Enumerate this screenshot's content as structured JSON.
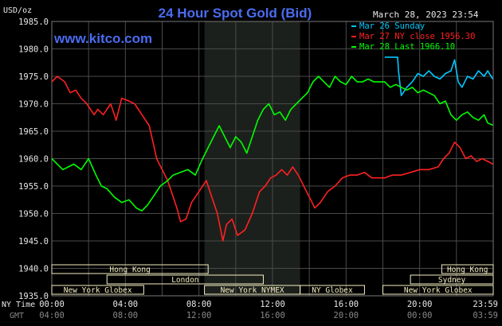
{
  "header": {
    "title": "24 Hour Spot Gold (Bid)",
    "unit": "USD/oz",
    "timestamp": "March 28, 2023 23:54",
    "watermark": "www.kitco.com"
  },
  "legend": [
    {
      "label": "Mar 26 Sunday",
      "color": "#00c8ff"
    },
    {
      "label": "Mar 27 NY close 1956.30",
      "color": "#ff2020"
    },
    {
      "label": "Mar 28 Last 1966.10",
      "color": "#00ff00"
    }
  ],
  "colors": {
    "background": "#000000",
    "grid": "#4a4a4a",
    "title": "#4a6cf0",
    "watermark": "#4a6cf0",
    "axis_text": "#e8e8e8",
    "session_fill": "#f3eec0",
    "session_text": "#333333",
    "highlight_band": "#1c201c"
  },
  "axis_labels": {
    "ny_time": "NY Time",
    "gmt": "GMT"
  },
  "sessions": [
    {
      "label": "Hong Kong",
      "start": 0,
      "end": 8.5,
      "row": 0
    },
    {
      "label": "Hong Kong",
      "start": 21.2,
      "end": 24,
      "row": 0
    },
    {
      "label": "London",
      "start": 3,
      "end": 11.5,
      "row": 1
    },
    {
      "label": "Sydney",
      "start": 19.5,
      "end": 24,
      "row": 1
    },
    {
      "label": "New York Globex",
      "start": 0,
      "end": 5,
      "row": 2
    },
    {
      "label": "New York NYMEX",
      "start": 8.3,
      "end": 13.5,
      "row": 2
    },
    {
      "label": "NY Globex",
      "start": 13.5,
      "end": 17,
      "row": 2
    },
    {
      "label": "New York Globex",
      "start": 18,
      "end": 24,
      "row": 2
    }
  ],
  "chart_data": {
    "type": "line",
    "ylim": [
      1935,
      1985
    ],
    "y_ticks": [
      1935,
      1940,
      1945,
      1950,
      1955,
      1960,
      1965,
      1970,
      1975,
      1980,
      1985
    ],
    "y_tick_labels": [
      "1935.0",
      "1940.0",
      "1945.0",
      "1950.0",
      "1955.0",
      "1960.0",
      "1965.0",
      "1970.0",
      "1975.0",
      "1980.0",
      "1985.0"
    ],
    "xlim": [
      0,
      24
    ],
    "x_ticks": [
      0,
      4,
      8,
      12,
      16,
      20,
      23.98
    ],
    "x_tick_labels_ny": [
      "00:00",
      "04:00",
      "08:00",
      "12:00",
      "16:00",
      "20:00",
      "23:59"
    ],
    "x_tick_labels_gmt": [
      "04:00",
      "08:00",
      "12:00",
      "16:00",
      "20:00",
      "00:00",
      "03:59"
    ],
    "highlight": {
      "x_start": 8.3,
      "x_end": 13.5
    },
    "series": [
      {
        "name": "Mar 26 Sunday",
        "color": "#00c8ff",
        "points": [
          [
            18.1,
            1978.5
          ],
          [
            18.8,
            1978.5
          ],
          [
            18.85,
            1976
          ],
          [
            19.0,
            1971.5
          ],
          [
            19.3,
            1973
          ],
          [
            19.6,
            1974
          ],
          [
            19.9,
            1975.5
          ],
          [
            20.2,
            1975
          ],
          [
            20.5,
            1976
          ],
          [
            20.8,
            1975
          ],
          [
            21.1,
            1974.5
          ],
          [
            21.4,
            1975.5
          ],
          [
            21.7,
            1976
          ],
          [
            21.9,
            1978
          ],
          [
            22.1,
            1974
          ],
          [
            22.3,
            1973
          ],
          [
            22.6,
            1975
          ],
          [
            22.9,
            1974.5
          ],
          [
            23.2,
            1976
          ],
          [
            23.5,
            1975
          ],
          [
            23.7,
            1976
          ],
          [
            23.98,
            1974.5
          ]
        ]
      },
      {
        "name": "Mar 27 NY close 1956.30",
        "color": "#ff2020",
        "points": [
          [
            0,
            1974
          ],
          [
            0.3,
            1975
          ],
          [
            0.7,
            1974
          ],
          [
            1.0,
            1972
          ],
          [
            1.3,
            1972.5
          ],
          [
            1.6,
            1971
          ],
          [
            1.9,
            1970
          ],
          [
            2.3,
            1968
          ],
          [
            2.5,
            1969
          ],
          [
            2.8,
            1968
          ],
          [
            3.2,
            1970
          ],
          [
            3.5,
            1967
          ],
          [
            3.8,
            1971
          ],
          [
            4.2,
            1970.5
          ],
          [
            4.5,
            1970
          ],
          [
            4.9,
            1968
          ],
          [
            5.3,
            1966
          ],
          [
            5.5,
            1963
          ],
          [
            5.7,
            1960
          ],
          [
            6.0,
            1958
          ],
          [
            6.3,
            1956
          ],
          [
            6.5,
            1954
          ],
          [
            6.8,
            1951
          ],
          [
            7.0,
            1948.5
          ],
          [
            7.3,
            1949
          ],
          [
            7.6,
            1952
          ],
          [
            8.0,
            1954
          ],
          [
            8.4,
            1956
          ],
          [
            8.7,
            1953
          ],
          [
            9.0,
            1950
          ],
          [
            9.3,
            1945
          ],
          [
            9.5,
            1948
          ],
          [
            9.8,
            1949
          ],
          [
            10.1,
            1946
          ],
          [
            10.5,
            1947
          ],
          [
            10.9,
            1950
          ],
          [
            11.3,
            1954
          ],
          [
            11.6,
            1955
          ],
          [
            11.9,
            1956.5
          ],
          [
            12.2,
            1957
          ],
          [
            12.5,
            1958
          ],
          [
            12.8,
            1957
          ],
          [
            13.1,
            1958.5
          ],
          [
            13.4,
            1957
          ],
          [
            13.7,
            1955
          ],
          [
            14.0,
            1953
          ],
          [
            14.3,
            1951
          ],
          [
            14.6,
            1952
          ],
          [
            15.0,
            1954
          ],
          [
            15.4,
            1955
          ],
          [
            15.8,
            1956.5
          ],
          [
            16.2,
            1957
          ],
          [
            16.6,
            1957
          ],
          [
            17.0,
            1957.5
          ],
          [
            17.4,
            1956.5
          ],
          [
            17.8,
            1956.5
          ],
          [
            18.1,
            1956.5
          ],
          [
            18.5,
            1957
          ],
          [
            19.0,
            1957
          ],
          [
            19.5,
            1957.5
          ],
          [
            20.0,
            1958
          ],
          [
            20.5,
            1958
          ],
          [
            21.0,
            1958.5
          ],
          [
            21.3,
            1960
          ],
          [
            21.6,
            1961
          ],
          [
            21.9,
            1963
          ],
          [
            22.2,
            1962
          ],
          [
            22.5,
            1960
          ],
          [
            22.8,
            1960.5
          ],
          [
            23.1,
            1959.5
          ],
          [
            23.4,
            1960
          ],
          [
            23.7,
            1959.5
          ],
          [
            23.98,
            1959
          ]
        ]
      },
      {
        "name": "Mar 28 Last 1966.10",
        "color": "#00ff00",
        "points": [
          [
            0,
            1960
          ],
          [
            0.3,
            1959
          ],
          [
            0.6,
            1958
          ],
          [
            0.9,
            1958.5
          ],
          [
            1.2,
            1959
          ],
          [
            1.6,
            1958
          ],
          [
            2.0,
            1960
          ],
          [
            2.4,
            1957
          ],
          [
            2.7,
            1955
          ],
          [
            3.0,
            1954.5
          ],
          [
            3.4,
            1953
          ],
          [
            3.8,
            1952
          ],
          [
            4.2,
            1952.5
          ],
          [
            4.6,
            1951
          ],
          [
            4.9,
            1950.5
          ],
          [
            5.2,
            1951.5
          ],
          [
            5.5,
            1953
          ],
          [
            5.9,
            1955
          ],
          [
            6.3,
            1956
          ],
          [
            6.6,
            1957
          ],
          [
            7.0,
            1957.5
          ],
          [
            7.4,
            1958
          ],
          [
            7.8,
            1957
          ],
          [
            8.2,
            1960
          ],
          [
            8.5,
            1962
          ],
          [
            8.8,
            1964
          ],
          [
            9.1,
            1966
          ],
          [
            9.4,
            1964
          ],
          [
            9.7,
            1962
          ],
          [
            10.0,
            1964
          ],
          [
            10.3,
            1963
          ],
          [
            10.6,
            1961
          ],
          [
            10.9,
            1964
          ],
          [
            11.2,
            1967
          ],
          [
            11.5,
            1969
          ],
          [
            11.8,
            1970
          ],
          [
            12.1,
            1968
          ],
          [
            12.4,
            1968.5
          ],
          [
            12.7,
            1967
          ],
          [
            13.0,
            1969
          ],
          [
            13.3,
            1970
          ],
          [
            13.6,
            1971
          ],
          [
            13.9,
            1972
          ],
          [
            14.2,
            1974
          ],
          [
            14.5,
            1975
          ],
          [
            14.8,
            1974
          ],
          [
            15.1,
            1973
          ],
          [
            15.4,
            1975
          ],
          [
            15.7,
            1974
          ],
          [
            16.0,
            1973.5
          ],
          [
            16.3,
            1975
          ],
          [
            16.6,
            1974
          ],
          [
            16.9,
            1974
          ],
          [
            17.2,
            1974.5
          ],
          [
            17.5,
            1974
          ],
          [
            17.8,
            1974
          ],
          [
            18.1,
            1974
          ],
          [
            18.4,
            1973
          ],
          [
            18.7,
            1973.5
          ],
          [
            19.0,
            1973
          ],
          [
            19.3,
            1972.5
          ],
          [
            19.6,
            1973
          ],
          [
            19.9,
            1972
          ],
          [
            20.2,
            1972.5
          ],
          [
            20.5,
            1972
          ],
          [
            20.8,
            1971.5
          ],
          [
            21.1,
            1970
          ],
          [
            21.4,
            1970.5
          ],
          [
            21.7,
            1968
          ],
          [
            22.0,
            1967
          ],
          [
            22.3,
            1968
          ],
          [
            22.6,
            1968.5
          ],
          [
            22.9,
            1967.5
          ],
          [
            23.2,
            1967
          ],
          [
            23.5,
            1968
          ],
          [
            23.7,
            1966.5
          ],
          [
            23.98,
            1966.1
          ]
        ]
      }
    ]
  }
}
